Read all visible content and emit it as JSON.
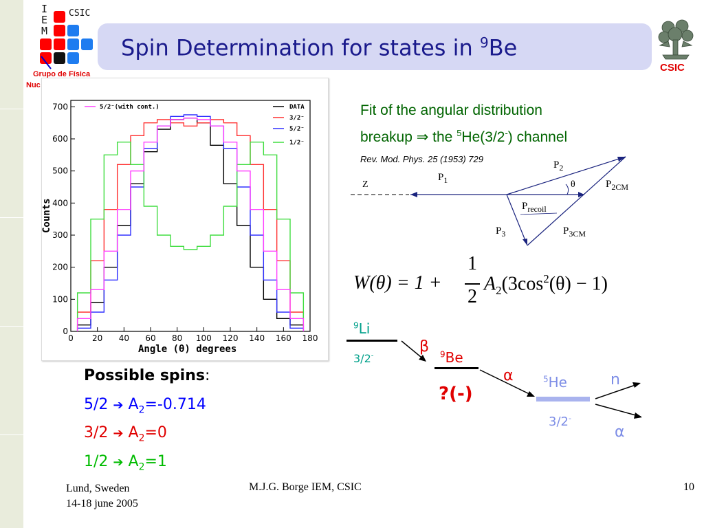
{
  "slide": {
    "title": "Spin Determination for states in ",
    "title_sup": "9",
    "title_rest": "Be",
    "page_number": "10",
    "footer_left_line1": "Lund, Sweden",
    "footer_left_line2": "14-18 june 2005",
    "footer_center": "M.J.G. Borge IEM, CSIC"
  },
  "logo_left": {
    "letters": [
      "I",
      "E",
      "M"
    ],
    "csic": "CSIC",
    "group": "Grupo de Física",
    "nuc": "Nuc",
    "colors": {
      "red": "#ff0000",
      "blue": "#1e7cf0"
    }
  },
  "logo_right": {
    "label": "CSIC",
    "label_color": "#e00000"
  },
  "fit": {
    "line1": "Fit of the angular distribution",
    "line2_a": "breakup ⇒ the ",
    "line2_sup": "5",
    "line2_b": "He(3/2",
    "line2_sup2": "-",
    "line2_c": ") channel",
    "reference": "Rev. Mod. Phys. 25 (1953) 729"
  },
  "kinematics": {
    "z": "Z",
    "p1": "P",
    "p1_sub": "1",
    "p2": "P",
    "p2_sub": "2",
    "p2cm": "P",
    "p2cm_sub": "2CM",
    "theta": "θ",
    "precoil": "P",
    "precoil_sub": "recoil",
    "p3": "P",
    "p3_sub": "3",
    "p3cm": "P",
    "p3cm_sub": "3CM"
  },
  "formula": {
    "lhs": "W(θ) = 1 +",
    "num": "1",
    "den": "2",
    "rhs_a": "A",
    "rhs_sub": "2",
    "rhs_b": "(3cos",
    "rhs_sup": "2",
    "rhs_c": "(θ) − 1)"
  },
  "decay": {
    "li": {
      "sup": "9",
      "name": "Li",
      "spin": "3/2",
      "spin_sup": "-"
    },
    "beta": "β",
    "be": {
      "sup": "9",
      "name": "Be",
      "spin": "?(-)"
    },
    "alpha1": "α",
    "he": {
      "sup": "5",
      "name": "He",
      "spin": "3/2",
      "spin_sup": "-"
    },
    "n": "n",
    "alpha2": "α",
    "colors": {
      "li": "#00a08a",
      "beta": "#e00000",
      "be": "#e00000",
      "he": "#7d8de6"
    }
  },
  "spins": {
    "header": "Possible spins",
    "colon": ":",
    "rows": [
      {
        "spin": "5/2",
        "arrow": "➔",
        "a_name": "A",
        "a_sub": "2",
        "value": "=-0.714",
        "color": "#0000ff"
      },
      {
        "spin": "3/2",
        "arrow": "➔",
        "a_name": "A",
        "a_sub": "2",
        "value": "=0",
        "color": "#e00000"
      },
      {
        "spin": "1/2",
        "arrow": "➔",
        "a_name": "A",
        "a_sub": "2",
        "value": "=1",
        "color": "#00bb00"
      }
    ]
  },
  "chart_data": {
    "type": "line",
    "title": "",
    "xlabel": "Angle (θ) degrees",
    "ylabel": "Counts",
    "xlim": [
      0,
      180
    ],
    "ylim": [
      0,
      720
    ],
    "xticks": [
      0,
      20,
      40,
      60,
      80,
      100,
      120,
      140,
      160,
      180
    ],
    "yticks": [
      0,
      100,
      200,
      300,
      400,
      500,
      600,
      700
    ],
    "legend_left": "5/2⁻(with cont.)",
    "series": [
      {
        "name": "DATA",
        "color": "#000000",
        "x": [
          10,
          20,
          30,
          40,
          50,
          60,
          70,
          80,
          90,
          100,
          110,
          120,
          130,
          140,
          150,
          160,
          170
        ],
        "y": [
          20,
          90,
          200,
          330,
          460,
          560,
          630,
          660,
          665,
          650,
          580,
          460,
          330,
          200,
          100,
          40,
          20
        ]
      },
      {
        "name": "3/2⁻",
        "color": "#ff3030",
        "x": [
          10,
          20,
          30,
          40,
          50,
          60,
          70,
          80,
          90,
          100,
          110,
          120,
          130,
          140,
          150,
          160,
          170
        ],
        "y": [
          60,
          220,
          380,
          520,
          610,
          650,
          660,
          650,
          640,
          650,
          660,
          650,
          610,
          520,
          380,
          220,
          60
        ]
      },
      {
        "name": "5/2⁻",
        "color": "#3030ff",
        "x": [
          10,
          20,
          30,
          40,
          50,
          60,
          70,
          80,
          90,
          100,
          110,
          120,
          130,
          140,
          150,
          160,
          170
        ],
        "y": [
          10,
          60,
          160,
          300,
          450,
          570,
          640,
          670,
          675,
          670,
          640,
          570,
          450,
          300,
          160,
          60,
          10
        ]
      },
      {
        "name": "1/2⁻",
        "color": "#40dd40",
        "x": [
          10,
          20,
          30,
          40,
          50,
          60,
          70,
          80,
          90,
          100,
          110,
          120,
          130,
          140,
          150,
          160,
          170
        ],
        "y": [
          120,
          350,
          550,
          590,
          520,
          390,
          300,
          265,
          255,
          265,
          300,
          390,
          520,
          590,
          550,
          350,
          120
        ]
      },
      {
        "name": "5/2⁻(with cont.)",
        "color": "#ff40ff",
        "x": [
          10,
          20,
          30,
          40,
          50,
          60,
          70,
          80,
          90,
          100,
          110,
          120,
          130,
          140,
          150,
          160,
          170
        ],
        "y": [
          40,
          130,
          250,
          380,
          500,
          590,
          640,
          660,
          665,
          660,
          640,
          590,
          500,
          380,
          250,
          130,
          40
        ]
      }
    ],
    "grid": false,
    "legend": "top"
  }
}
